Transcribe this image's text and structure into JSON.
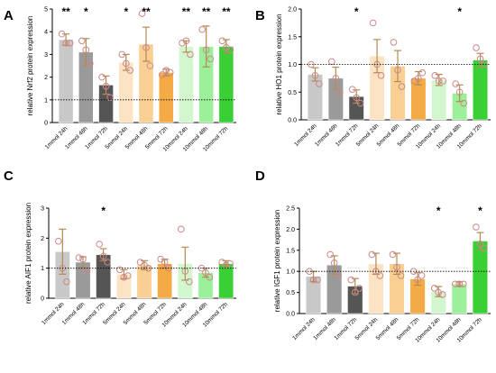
{
  "colors": {
    "1mmol 24h": "#c8c8c8",
    "1mmol 48h": "#9a9a9a",
    "1mmol 72h": "#555555",
    "5mmol 24h": "#fbe3c4",
    "5mmol 48h": "#f9cf93",
    "5mmol 72h": "#f5ab45",
    "10mmol 24h": "#d2f7cf",
    "10mmol 48h": "#9df09a",
    "10mmol 72h": "#39d035",
    "point": "#cc8888",
    "error": "#b58a52"
  },
  "chart_data": [
    {
      "panel": "A",
      "type": "bar",
      "ylabel": "relative Nrf2 protein expression",
      "ylim": [
        0,
        5
      ],
      "yticks": [
        0,
        1,
        2,
        3,
        4,
        5
      ],
      "reference_line": 1,
      "categories": [
        "1mmol 24h",
        "1mmol 48h",
        "1mmol 72h",
        "5mmol 24h",
        "5mmol 48h",
        "5mmol 72h",
        "10mmol 24h",
        "10mmol 48h",
        "10mmol 72h"
      ],
      "values": [
        3.65,
        3.1,
        1.65,
        2.65,
        3.45,
        2.2,
        3.35,
        3.35,
        3.35
      ],
      "errors": [
        0.25,
        0.6,
        0.4,
        0.35,
        0.75,
        0.15,
        0.25,
        0.9,
        0.3
      ],
      "points": [
        [
          3.9,
          3.5,
          3.5
        ],
        [
          3.6,
          3.2,
          2.6
        ],
        [
          2.0,
          1.6,
          1.1
        ],
        [
          3.0,
          2.6,
          2.3
        ],
        [
          4.8,
          3.3,
          2.5
        ],
        [
          2.1,
          2.3,
          2.2
        ],
        [
          3.5,
          3.6,
          3.0
        ],
        [
          4.1,
          3.2,
          2.8
        ],
        [
          3.6,
          3.3,
          3.2
        ]
      ],
      "significance": [
        "**",
        "*",
        "",
        "*",
        "**",
        "",
        "**",
        "**",
        "**"
      ]
    },
    {
      "panel": "B",
      "type": "bar",
      "ylabel": "relative HO1 protein expression",
      "ylim": [
        0,
        2
      ],
      "yticks": [
        0.0,
        0.5,
        1.0,
        1.5,
        2.0
      ],
      "reference_line": 1,
      "categories": [
        "1mmol 24h",
        "1mmol 48h",
        "1mmol 72h",
        "5mmol 24h",
        "5mmol 48h",
        "5mmol 72h",
        "10mmol 24h",
        "10mmol 48h",
        "10mmol 72h"
      ],
      "values": [
        0.82,
        0.75,
        0.42,
        1.15,
        0.97,
        0.75,
        0.72,
        0.48,
        1.08
      ],
      "errors": [
        0.12,
        0.2,
        0.12,
        0.3,
        0.28,
        0.12,
        0.1,
        0.15,
        0.12
      ],
      "points": [
        [
          1.0,
          0.8,
          0.65
        ],
        [
          1.05,
          0.75,
          0.5
        ],
        [
          0.55,
          0.4,
          0.3
        ],
        [
          1.75,
          1.0,
          0.8
        ],
        [
          1.4,
          0.9,
          0.6
        ],
        [
          0.7,
          0.75,
          0.85
        ],
        [
          0.8,
          0.7,
          0.7
        ],
        [
          0.65,
          0.5,
          0.3
        ],
        [
          1.3,
          1.1,
          1.0
        ]
      ],
      "significance": [
        "",
        "",
        "*",
        "",
        "",
        "",
        "",
        "*",
        ""
      ]
    },
    {
      "panel": "C",
      "type": "bar",
      "ylabel": "relative AIF1 protein expression",
      "ylim": [
        0,
        3
      ],
      "yticks": [
        0,
        1,
        2,
        3
      ],
      "reference_line": 1,
      "categories": [
        "1mmol 24h",
        "1mmol 48h",
        "1mmol 72h",
        "5mmol 24h",
        "5mmol 48h",
        "5mmol 72h",
        "10mmol 24h",
        "10mmol 48h",
        "10mmol 72h"
      ],
      "values": [
        1.55,
        1.2,
        1.45,
        0.8,
        1.1,
        1.15,
        1.15,
        0.85,
        1.15
      ],
      "errors": [
        0.75,
        0.18,
        0.2,
        0.15,
        0.15,
        0.15,
        0.55,
        0.15,
        0.1
      ],
      "points": [
        [
          1.9,
          1.0,
          0.55
        ],
        [
          1.35,
          1.3,
          0.9
        ],
        [
          1.8,
          1.4,
          1.2
        ],
        [
          0.95,
          0.7,
          0.75
        ],
        [
          1.2,
          1.1,
          1.0
        ],
        [
          1.3,
          1.2,
          1.0
        ],
        [
          2.3,
          0.9,
          0.55
        ],
        [
          1.0,
          0.85,
          0.7
        ],
        [
          1.2,
          1.1,
          1.15
        ]
      ],
      "significance": [
        "",
        "",
        "*",
        "",
        "",
        "",
        "",
        "",
        ""
      ]
    },
    {
      "panel": "D",
      "type": "bar",
      "ylabel": "relative IGF1 protein expression",
      "ylim": [
        0,
        2.5
      ],
      "yticks": [
        0.0,
        0.5,
        1.0,
        1.5,
        2.0,
        2.5
      ],
      "reference_line": 1,
      "categories": [
        "1mmol 24h",
        "1mmol 48h",
        "1mmol 72h",
        "5mmol 24h",
        "5mmol 48h",
        "5mmol 72h",
        "10mmol 24h",
        "10mmol 48h",
        "10mmol 72h"
      ],
      "values": [
        0.88,
        1.15,
        0.65,
        1.18,
        1.18,
        0.82,
        0.52,
        0.7,
        1.72
      ],
      "errors": [
        0.12,
        0.22,
        0.18,
        0.25,
        0.25,
        0.15,
        0.12,
        0.05,
        0.2
      ],
      "points": [
        [
          1.0,
          0.8,
          0.8
        ],
        [
          1.4,
          1.2,
          0.9
        ],
        [
          0.8,
          0.5,
          0.6
        ],
        [
          1.4,
          1.0,
          0.9
        ],
        [
          1.4,
          1.1,
          0.9
        ],
        [
          1.0,
          0.8,
          0.9
        ],
        [
          0.6,
          0.5,
          0.45
        ],
        [
          0.7,
          0.7,
          0.7
        ],
        [
          2.05,
          1.65,
          1.55
        ]
      ],
      "significance": [
        "",
        "",
        "",
        "",
        "",
        "",
        "*",
        "",
        "*"
      ]
    }
  ]
}
